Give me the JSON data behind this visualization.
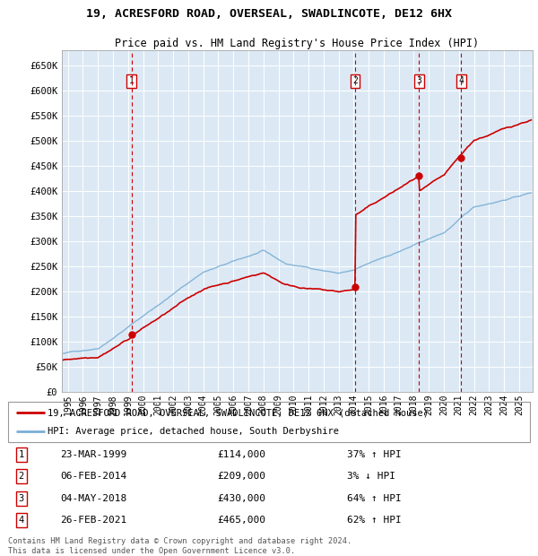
{
  "title1": "19, ACRESFORD ROAD, OVERSEAL, SWADLINCOTE, DE12 6HX",
  "title2": "Price paid vs. HM Land Registry's House Price Index (HPI)",
  "legend_line1": "19, ACRESFORD ROAD, OVERSEAL, SWADLINCOTE, DE12 6HX (detached house)",
  "legend_line2": "HPI: Average price, detached house, South Derbyshire",
  "sale_prices": [
    114000,
    209000,
    430000,
    465000
  ],
  "sale_labels": [
    "1",
    "2",
    "3",
    "4"
  ],
  "sale_pct": [
    "37% ↑ HPI",
    "3% ↓ HPI",
    "64% ↑ HPI",
    "62% ↑ HPI"
  ],
  "sale_date_labels": [
    "23-MAR-1999",
    "06-FEB-2014",
    "04-MAY-2018",
    "26-FEB-2021"
  ],
  "sale_price_labels": [
    "£114,000",
    "£209,000",
    "£430,000",
    "£465,000"
  ],
  "sale_dates_num": [
    1999.23,
    2014.09,
    2018.34,
    2021.15
  ],
  "hpi_color": "#7bafd4",
  "price_color": "#cc0000",
  "dashed_vline_color": "#cc0000",
  "plot_bg_color": "#dce9f5",
  "yticks": [
    0,
    50000,
    100000,
    150000,
    200000,
    250000,
    300000,
    350000,
    400000,
    450000,
    500000,
    550000,
    600000,
    650000
  ],
  "ytick_labels": [
    "£0",
    "£50K",
    "£100K",
    "£150K",
    "£200K",
    "£250K",
    "£300K",
    "£350K",
    "£400K",
    "£450K",
    "£500K",
    "£550K",
    "£600K",
    "£650K"
  ],
  "ylim": [
    0,
    680000
  ],
  "xlim_left": 1994.6,
  "xlim_right": 2025.9,
  "copyright_text": "Contains HM Land Registry data © Crown copyright and database right 2024.\nThis data is licensed under the Open Government Licence v3.0.",
  "footnote_color": "#555555"
}
